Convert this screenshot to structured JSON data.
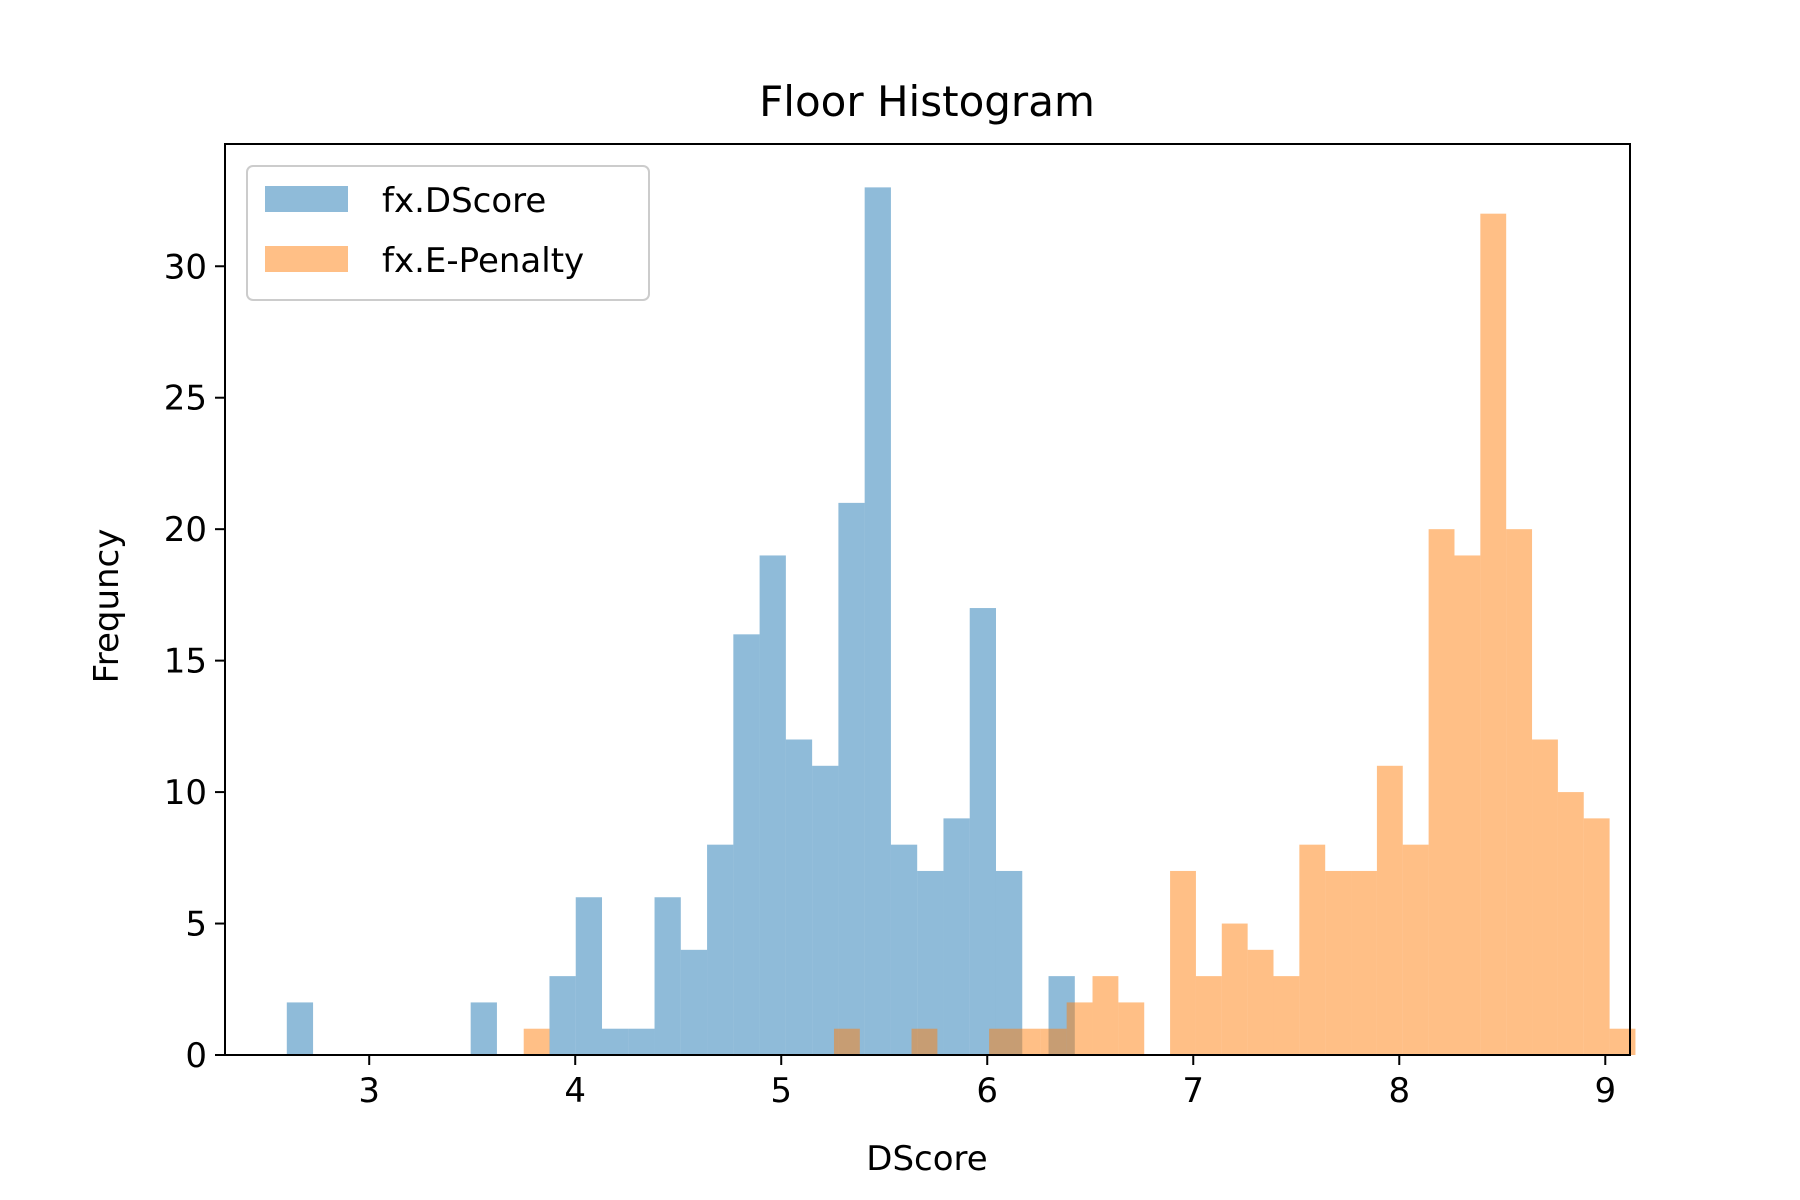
{
  "chart_data": {
    "type": "bar",
    "title": "Floor Histogram",
    "xlabel": "DScore",
    "ylabel": "Frequncy",
    "xlim": [
      2.3,
      9.12
    ],
    "ylim": [
      0,
      34.65
    ],
    "xticks": [
      3,
      4,
      5,
      6,
      7,
      8,
      9
    ],
    "yticks": [
      0,
      5,
      10,
      15,
      20,
      25,
      30
    ],
    "grid": false,
    "legend_position": "upper-left",
    "series": [
      {
        "name": "fx.DScore",
        "color": "#1f77b4",
        "opacity": 0.5,
        "bin_start": 2.6,
        "bin_width": 0.1275,
        "counts": [
          2,
          0,
          0,
          0,
          0,
          0,
          0,
          2,
          0,
          0,
          3,
          6,
          1,
          1,
          6,
          4,
          8,
          16,
          19,
          12,
          11,
          21,
          33,
          8,
          7,
          9,
          17,
          7,
          0,
          3
        ]
      },
      {
        "name": "fx.E-Penalty",
        "color": "#ff7f0e",
        "opacity": 0.5,
        "bin_start": 3.75,
        "bin_width": 0.1255,
        "counts": [
          1,
          0,
          0,
          0,
          0,
          0,
          0,
          0,
          0,
          0,
          0,
          0,
          1,
          0,
          0,
          1,
          0,
          0,
          1,
          1,
          1,
          2,
          3,
          2,
          0,
          7,
          3,
          5,
          4,
          3,
          8,
          7,
          7,
          11,
          8,
          20,
          19,
          32,
          20,
          12,
          10,
          9,
          1
        ]
      }
    ]
  }
}
